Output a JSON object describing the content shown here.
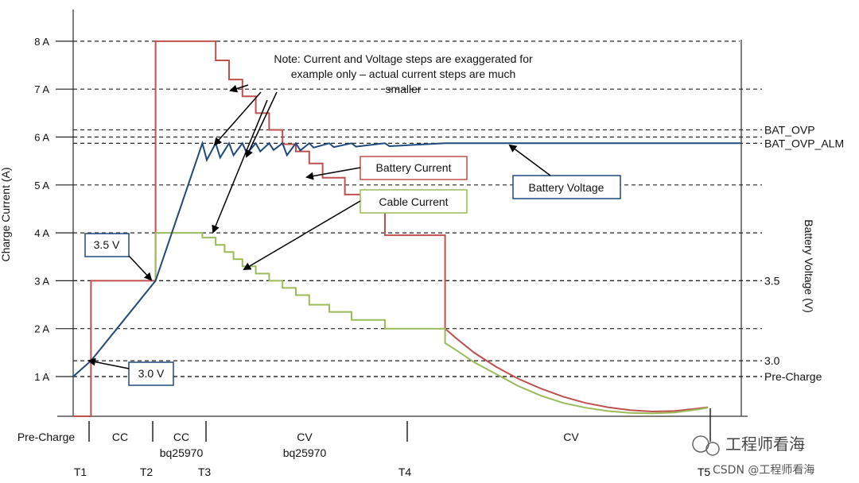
{
  "chart_data": {
    "type": "line",
    "title": "",
    "ylabel": "Charge Current (A)",
    "y2label": "Battery Voltage (V)",
    "yticks": [
      "1 A",
      "2 A",
      "3 A",
      "4 A",
      "5 A",
      "6 A",
      "7 A",
      "8 A"
    ],
    "ylim": [
      0,
      8.5
    ],
    "right_levels": [
      {
        "label": "BAT_OVP",
        "current_equiv": 6.15
      },
      {
        "label": "BAT_OVP_ALM",
        "current_equiv": 5.87
      },
      {
        "label": "3.5",
        "current_equiv": 3.0
      },
      {
        "label": "3.0",
        "current_equiv": 1.33
      },
      {
        "label": "Pre-Charge",
        "current_equiv": 1.0
      }
    ],
    "time_markers": [
      "T1",
      "T2",
      "T3",
      "T4",
      "T5"
    ],
    "phases": [
      {
        "label": "Pre-Charge",
        "sub": ""
      },
      {
        "label": "CC",
        "sub": ""
      },
      {
        "label": "CC",
        "sub": "bq25970"
      },
      {
        "label": "CV",
        "sub": "bq25970"
      },
      {
        "label": "CV",
        "sub": ""
      }
    ],
    "note": [
      "Note: Current and Voltage steps are exaggerated for",
      "example only – actual current steps are much",
      "smaller"
    ],
    "callouts": {
      "battery_current": "Battery Current",
      "cable_current": "Cable Current",
      "battery_voltage": "Battery Voltage",
      "v35": "3.5 V",
      "v30": "3.0 V"
    },
    "series": [
      {
        "name": "Battery Current",
        "color": "#c0504d",
        "points": [
          [
            0,
            0.17
          ],
          [
            0.08,
            0.17
          ],
          [
            0.08,
            3.0
          ],
          [
            0.37,
            3.0
          ],
          [
            0.37,
            8.0
          ],
          [
            0.64,
            8.0
          ],
          [
            0.64,
            7.6
          ],
          [
            0.7,
            7.6
          ],
          [
            0.7,
            7.2
          ],
          [
            0.76,
            7.2
          ],
          [
            0.76,
            6.85
          ],
          [
            0.82,
            6.85
          ],
          [
            0.82,
            6.5
          ],
          [
            0.88,
            6.5
          ],
          [
            0.88,
            6.15
          ],
          [
            0.94,
            6.15
          ],
          [
            0.94,
            5.85
          ],
          [
            1.0,
            5.85
          ],
          [
            1.0,
            5.7
          ],
          [
            1.06,
            5.7
          ],
          [
            1.06,
            5.45
          ],
          [
            1.12,
            5.45
          ],
          [
            1.12,
            5.15
          ],
          [
            1.22,
            5.15
          ],
          [
            1.22,
            4.8
          ],
          [
            1.3,
            4.8
          ],
          [
            1.3,
            4.5
          ],
          [
            1.4,
            4.5
          ],
          [
            1.4,
            3.95
          ],
          [
            1.67,
            3.95
          ],
          [
            1.67,
            2.0
          ],
          [
            1.72,
            1.8
          ],
          [
            1.8,
            1.5
          ],
          [
            1.9,
            1.2
          ],
          [
            2.0,
            0.95
          ],
          [
            2.1,
            0.75
          ],
          [
            2.2,
            0.58
          ],
          [
            2.3,
            0.45
          ],
          [
            2.4,
            0.36
          ],
          [
            2.5,
            0.3
          ],
          [
            2.6,
            0.27
          ],
          [
            2.7,
            0.28
          ],
          [
            2.8,
            0.33
          ],
          [
            2.85,
            0.36
          ]
        ]
      },
      {
        "name": "Cable Current",
        "color": "#9bbb59",
        "points": [
          [
            0.37,
            3.0
          ],
          [
            0.37,
            4.0
          ],
          [
            0.58,
            4.0
          ],
          [
            0.58,
            3.9
          ],
          [
            0.64,
            3.9
          ],
          [
            0.64,
            3.75
          ],
          [
            0.68,
            3.75
          ],
          [
            0.68,
            3.6
          ],
          [
            0.72,
            3.6
          ],
          [
            0.72,
            3.45
          ],
          [
            0.76,
            3.45
          ],
          [
            0.76,
            3.3
          ],
          [
            0.82,
            3.3
          ],
          [
            0.82,
            3.15
          ],
          [
            0.88,
            3.15
          ],
          [
            0.88,
            3.0
          ],
          [
            0.94,
            3.0
          ],
          [
            0.94,
            2.85
          ],
          [
            1.0,
            2.85
          ],
          [
            1.0,
            2.7
          ],
          [
            1.06,
            2.7
          ],
          [
            1.06,
            2.5
          ],
          [
            1.15,
            2.5
          ],
          [
            1.15,
            2.35
          ],
          [
            1.25,
            2.35
          ],
          [
            1.25,
            2.18
          ],
          [
            1.4,
            2.18
          ],
          [
            1.4,
            2.0
          ],
          [
            1.67,
            2.0
          ],
          [
            1.67,
            1.7
          ],
          [
            1.72,
            1.55
          ],
          [
            1.8,
            1.3
          ],
          [
            1.9,
            1.05
          ],
          [
            2.0,
            0.8
          ],
          [
            2.1,
            0.6
          ],
          [
            2.2,
            0.45
          ],
          [
            2.3,
            0.35
          ],
          [
            2.4,
            0.28
          ],
          [
            2.5,
            0.24
          ],
          [
            2.6,
            0.23
          ],
          [
            2.7,
            0.25
          ],
          [
            2.8,
            0.31
          ],
          [
            2.85,
            0.35
          ]
        ]
      },
      {
        "name": "Battery Voltage",
        "color": "#1f497d",
        "points": [
          [
            0,
            1.0
          ],
          [
            0.08,
            1.33
          ],
          [
            0.37,
            3.0
          ],
          [
            0.58,
            5.87
          ],
          [
            0.6,
            5.52
          ],
          [
            0.64,
            5.87
          ],
          [
            0.66,
            5.57
          ],
          [
            0.7,
            5.87
          ],
          [
            0.72,
            5.62
          ],
          [
            0.76,
            5.87
          ],
          [
            0.78,
            5.66
          ],
          [
            0.82,
            5.87
          ],
          [
            0.84,
            5.7
          ],
          [
            0.88,
            5.87
          ],
          [
            0.9,
            5.73
          ],
          [
            0.94,
            5.87
          ],
          [
            0.96,
            5.62
          ],
          [
            1.0,
            5.87
          ],
          [
            1.02,
            5.72
          ],
          [
            1.06,
            5.87
          ],
          [
            1.08,
            5.78
          ],
          [
            1.15,
            5.87
          ],
          [
            1.17,
            5.79
          ],
          [
            1.25,
            5.87
          ],
          [
            1.27,
            5.8
          ],
          [
            1.4,
            5.87
          ],
          [
            1.42,
            5.81
          ],
          [
            1.67,
            5.87
          ],
          [
            2.85,
            5.87
          ],
          [
            3.0,
            5.87
          ]
        ]
      }
    ]
  },
  "watermark": {
    "brand": "工程师看海",
    "credit": "CSDN @工程师看海"
  }
}
